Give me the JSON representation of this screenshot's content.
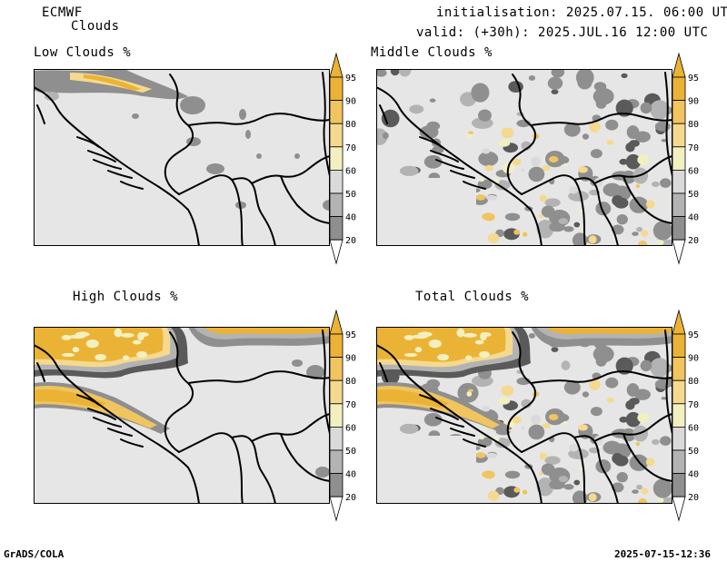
{
  "header": {
    "model": "ECMWF",
    "product": "Clouds",
    "init_line": "initialisation: 2025.07.15. 06:00 UTC",
    "valid_line": "valid: (+30h): 2025.JUL.16 12:00 UTC"
  },
  "panels": [
    {
      "title": "Low Clouds %"
    },
    {
      "title": "Middle Clouds %"
    },
    {
      "title": "High Clouds %"
    },
    {
      "title": "Total Clouds %"
    }
  ],
  "legend": {
    "levels": [
      "95",
      "90",
      "80",
      "70",
      "60",
      "50",
      "40",
      "20"
    ],
    "colors": [
      "#ebb335",
      "#f0c45f",
      "#f4d98f",
      "#f2f0c0",
      "#dadada",
      "#b3b3b3",
      "#8f8f8f",
      "#5a5a5a"
    ],
    "background_color": "#e6e6e6"
  },
  "footer": {
    "software": "GrADS/COLA",
    "timestamp": "2025-07-15-12:36"
  }
}
